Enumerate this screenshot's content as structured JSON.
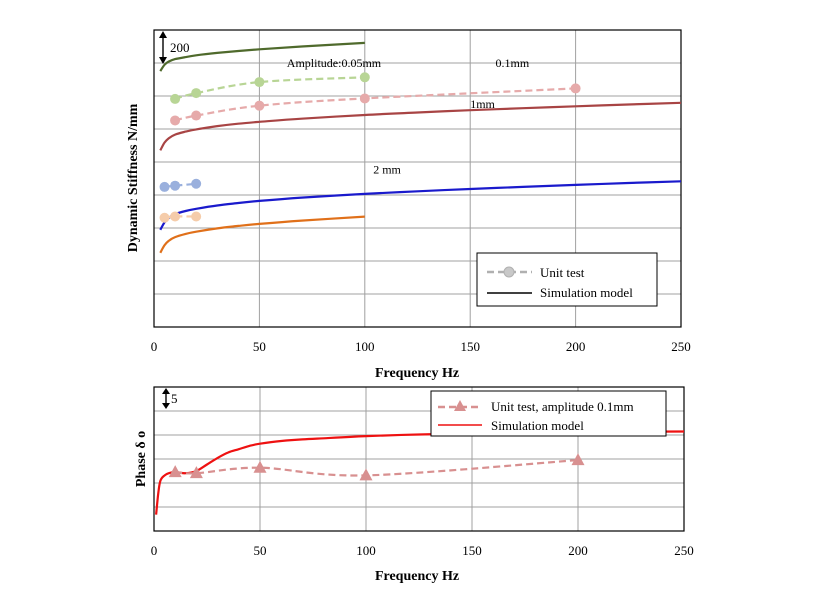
{
  "chart_data": [
    {
      "type": "line",
      "xlabel": "Frequency Hz",
      "ylabel": "Dynamic Stiffness N/mm",
      "scale_bar_label": "200",
      "x_ticks": [
        "0",
        "50",
        "100",
        "150",
        "200",
        "250"
      ],
      "xlim": [
        0,
        250
      ],
      "grid": true,
      "legend": {
        "placement": "bottom-right",
        "entries": [
          {
            "label": "Unit test",
            "color": "#b0b0b0"
          },
          {
            "label": "Simulation model",
            "color": "#000000"
          }
        ]
      },
      "annotations": [
        {
          "text": "Amplitude:0.05mm",
          "x": 63,
          "y": 1.0
        },
        {
          "text": "0.1mm",
          "x": 162,
          "y": 1.0
        },
        {
          "text": "1mm",
          "x": 150,
          "y": 6.05
        },
        {
          "text": "2 mm",
          "x": 104,
          "y": 11.4
        }
      ],
      "curve_x": [
        3,
        5,
        7,
        10,
        15,
        20,
        30,
        40,
        50,
        70,
        100,
        125,
        150,
        175,
        200,
        225,
        250
      ],
      "series": [
        {
          "name": "Amplitude:0.05mm",
          "color": "#4f6a2c",
          "test_color": "#b8d595",
          "sim_x_max": 100,
          "sim_y": [
            0.62,
            1.38,
            1.78,
            2.07,
            2.32,
            2.53,
            2.82,
            3.05,
            3.26,
            3.6,
            4.04
          ],
          "test_x": [
            10,
            20,
            50,
            100
          ],
          "test_y": [
            5.64,
            5.16,
            4.26,
            3.87
          ]
        },
        {
          "name": "0.1mm",
          "color": "#a84444",
          "test_color": "#e6aaaa",
          "sim_x_max": 250,
          "sim_y": [
            1.4,
            2.35,
            2.88,
            3.32,
            3.68,
            3.95,
            4.35,
            4.64,
            4.87,
            5.25,
            5.7,
            6.0,
            6.28,
            6.52,
            6.75,
            6.97,
            7.17
          ],
          "test_x": [
            10,
            20,
            50,
            100,
            200
          ],
          "test_y": [
            7.4,
            7.0,
            6.19,
            5.6,
            4.78
          ]
        },
        {
          "name": "1mm",
          "color": "#1a1acc",
          "test_color": "#9ab0dd",
          "sim_x_max": 250,
          "sim_y": [
            1.1,
            2.0,
            2.55,
            3.0,
            3.38,
            3.65,
            4.05,
            4.35,
            4.6,
            5.0,
            5.45,
            5.77,
            6.05,
            6.3,
            6.54,
            6.77,
            6.98
          ],
          "test_x": [
            5,
            10,
            20
          ],
          "test_y": [
            12.84,
            12.74,
            12.58
          ]
        },
        {
          "name": "2 mm",
          "color": "#e0701a",
          "test_color": "#f5ccaa",
          "sim_x_max": 100,
          "sim_y": [
            0.6,
            1.5,
            2.05,
            2.5,
            2.88,
            3.15,
            3.55,
            3.85,
            4.1,
            4.5,
            4.98
          ],
          "test_x": [
            5,
            10,
            20
          ],
          "test_y": [
            15.36,
            15.26,
            15.26
          ]
        }
      ]
    },
    {
      "type": "line",
      "xlabel": "Frequency  Hz",
      "ylabel": "Phase  δ   o",
      "scale_bar_label": "5",
      "x_ticks": [
        "0",
        "50",
        "100",
        "150",
        "200",
        "250"
      ],
      "xlim": [
        0,
        250
      ],
      "grid": true,
      "legend": {
        "placement": "top-right",
        "entries": [
          {
            "label": "Unit test, amplitude 0.1mm",
            "color": "#d89090"
          },
          {
            "label": "Simulation model",
            "color": "#ee1111"
          }
        ]
      },
      "series": [
        {
          "name": "Simulation model",
          "color": "#ee1111",
          "x": [
            1,
            2,
            3,
            5,
            7,
            10,
            15,
            20,
            25,
            30,
            35,
            40,
            45,
            50,
            60,
            70,
            80,
            100,
            125,
            150,
            175,
            200,
            225,
            250
          ],
          "y": [
            1.5,
            3.4,
            4.6,
            5.1,
            5.3,
            5.4,
            5.3,
            5.5,
            6.1,
            6.7,
            7.2,
            7.5,
            7.8,
            8.0,
            8.25,
            8.4,
            8.5,
            8.7,
            8.85,
            8.95,
            9.02,
            9.08,
            9.1,
            9.12
          ]
        },
        {
          "name": "Unit test, amplitude 0.1mm",
          "color": "#d89090",
          "x": [
            10,
            20,
            50,
            100,
            200
          ],
          "y": [
            5.4,
            5.3,
            5.8,
            5.1,
            6.5
          ]
        }
      ]
    }
  ]
}
